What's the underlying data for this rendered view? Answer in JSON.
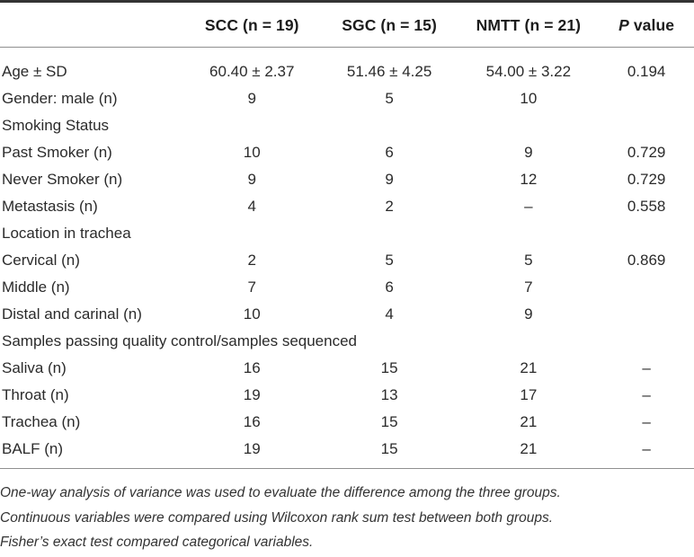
{
  "table": {
    "header": {
      "label_col": "",
      "scc": "SCC (n = 19)",
      "sgc": "SGC (n = 15)",
      "nmtt": "NMTT (n = 21)",
      "p_italic": "P",
      "p_rest": " value"
    },
    "rows": [
      {
        "type": "data",
        "label": "Age ± SD",
        "values": [
          "60.40 ± 2.37",
          "51.46 ± 4.25",
          "54.00 ± 3.22"
        ],
        "p": "0.194"
      },
      {
        "type": "data",
        "label": "Gender: male (n)",
        "values": [
          "9",
          "5",
          "10"
        ],
        "p": ""
      },
      {
        "type": "section",
        "label": "Smoking Status"
      },
      {
        "type": "data",
        "label": "Past Smoker (n)",
        "values": [
          "10",
          "6",
          "9"
        ],
        "p": "0.729"
      },
      {
        "type": "data",
        "label": "Never Smoker (n)",
        "values": [
          "9",
          "9",
          "12"
        ],
        "p": "0.729"
      },
      {
        "type": "data",
        "label": "Metastasis (n)",
        "values": [
          "4",
          "2",
          "–"
        ],
        "p": "0.558"
      },
      {
        "type": "section",
        "label": "Location in trachea"
      },
      {
        "type": "data",
        "label": "Cervical (n)",
        "values": [
          "2",
          "5",
          "5"
        ],
        "p": "0.869"
      },
      {
        "type": "data",
        "label": "Middle (n)",
        "values": [
          "7",
          "6",
          "7"
        ],
        "p": ""
      },
      {
        "type": "data",
        "label": "Distal and carinal (n)",
        "values": [
          "10",
          "4",
          "9"
        ],
        "p": ""
      },
      {
        "type": "section",
        "label": "Samples passing quality control/samples sequenced"
      },
      {
        "type": "data",
        "label": "Saliva (n)",
        "values": [
          "16",
          "15",
          "21"
        ],
        "p": "–"
      },
      {
        "type": "data",
        "label": "Throat (n)",
        "values": [
          "19",
          "13",
          "17"
        ],
        "p": "–"
      },
      {
        "type": "data",
        "label": "Trachea (n)",
        "values": [
          "16",
          "15",
          "21"
        ],
        "p": "–"
      },
      {
        "type": "data",
        "label": "BALF (n)",
        "values": [
          "19",
          "15",
          "21"
        ],
        "p": "–"
      }
    ],
    "footnotes": [
      "One-way analysis of variance was used to evaluate the difference among the three groups.",
      "Continuous variables were compared using Wilcoxon rank sum test between both groups.",
      "Fisher’s exact test compared categorical variables."
    ]
  }
}
